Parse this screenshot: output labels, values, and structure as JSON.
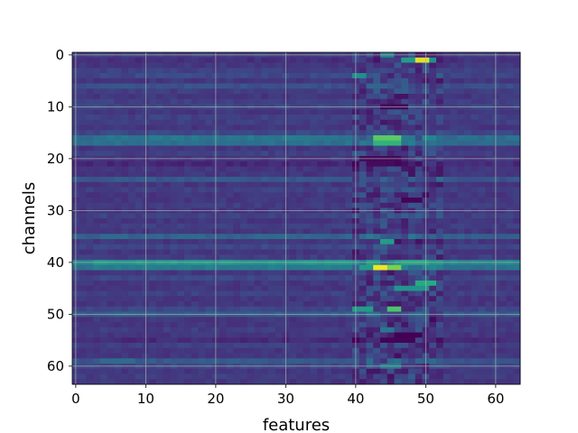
{
  "chart_data": {
    "type": "heatmap",
    "title": "",
    "xlabel": "features",
    "ylabel": "channels",
    "n_cols": 64,
    "n_rows": 64,
    "xlim": [
      -0.5,
      63.5
    ],
    "ylim": [
      63.5,
      -0.5
    ],
    "x_ticks": [
      0,
      10,
      20,
      30,
      40,
      50,
      60
    ],
    "y_ticks": [
      0,
      10,
      20,
      30,
      40,
      50,
      60
    ],
    "grid": true,
    "colormap": "viridis",
    "value_range": [
      0,
      1
    ],
    "base_level": 0.16,
    "row_offsets": [
      0.02,
      -0.02,
      0.0,
      0.03,
      0.05,
      0.0,
      0.08,
      0.02,
      0.0,
      0.03,
      0.05,
      0.0,
      0.03,
      0.02,
      0.0,
      0.05,
      0.2,
      0.18,
      0.0,
      0.03,
      0.0,
      -0.04,
      0.0,
      0.0,
      0.1,
      0.0,
      0.03,
      0.0,
      0.0,
      0.02,
      0.0,
      0.03,
      0.0,
      0.02,
      0.0,
      0.14,
      0.0,
      0.05,
      0.0,
      0.02,
      0.3,
      0.22,
      0.0,
      0.05,
      0.0,
      0.0,
      0.03,
      0.0,
      0.0,
      0.05,
      0.12,
      0.0,
      0.0,
      0.02,
      0.0,
      -0.03,
      0.03,
      0.0,
      0.0,
      0.1,
      0.05,
      0.0,
      0.02,
      0.0
    ],
    "hotspots": [
      {
        "row": 1,
        "col_start": 49,
        "col_end": 50,
        "value": 0.95
      },
      {
        "row": 1,
        "col_start": 47,
        "col_end": 48,
        "value": 0.55
      },
      {
        "row": 1,
        "col_start": 51,
        "col_end": 51,
        "value": 0.5
      },
      {
        "row": 0,
        "col_start": 44,
        "col_end": 45,
        "value": 0.45
      },
      {
        "row": 4,
        "col_start": 40,
        "col_end": 41,
        "value": 0.5
      },
      {
        "row": 16,
        "col_start": 43,
        "col_end": 46,
        "value": 0.75
      },
      {
        "row": 17,
        "col_start": 43,
        "col_end": 46,
        "value": 0.65
      },
      {
        "row": 36,
        "col_start": 44,
        "col_end": 45,
        "value": 0.55
      },
      {
        "row": 40,
        "col_start": 47,
        "col_end": 50,
        "value": 0.6
      },
      {
        "row": 41,
        "col_start": 43,
        "col_end": 44,
        "value": 0.98
      },
      {
        "row": 41,
        "col_start": 45,
        "col_end": 46,
        "value": 0.8
      },
      {
        "row": 41,
        "col_start": 41,
        "col_end": 42,
        "value": 0.55
      },
      {
        "row": 44,
        "col_start": 49,
        "col_end": 51,
        "value": 0.62
      },
      {
        "row": 45,
        "col_start": 46,
        "col_end": 50,
        "value": 0.52
      },
      {
        "row": 49,
        "col_start": 45,
        "col_end": 46,
        "value": 0.72
      },
      {
        "row": 49,
        "col_start": 40,
        "col_end": 42,
        "value": 0.55
      },
      {
        "row": 53,
        "col_start": 44,
        "col_end": 45,
        "value": 0.4
      },
      {
        "row": 59,
        "col_start": 4,
        "col_end": 8,
        "value": 0.35
      },
      {
        "row": 60,
        "col_start": 44,
        "col_end": 46,
        "value": 0.42
      }
    ],
    "dark_spots": [
      {
        "row": 10,
        "col_start": 44,
        "col_end": 47,
        "value": 0.02
      },
      {
        "row": 20,
        "col_start": 41,
        "col_end": 46,
        "value": 0.02
      },
      {
        "row": 21,
        "col_start": 42,
        "col_end": 45,
        "value": 0.03
      },
      {
        "row": 28,
        "col_start": 47,
        "col_end": 49,
        "value": 0.01
      },
      {
        "row": 54,
        "col_start": 46,
        "col_end": 49,
        "value": 0.0
      },
      {
        "row": 55,
        "col_start": 44,
        "col_end": 48,
        "value": 0.01
      }
    ]
  }
}
